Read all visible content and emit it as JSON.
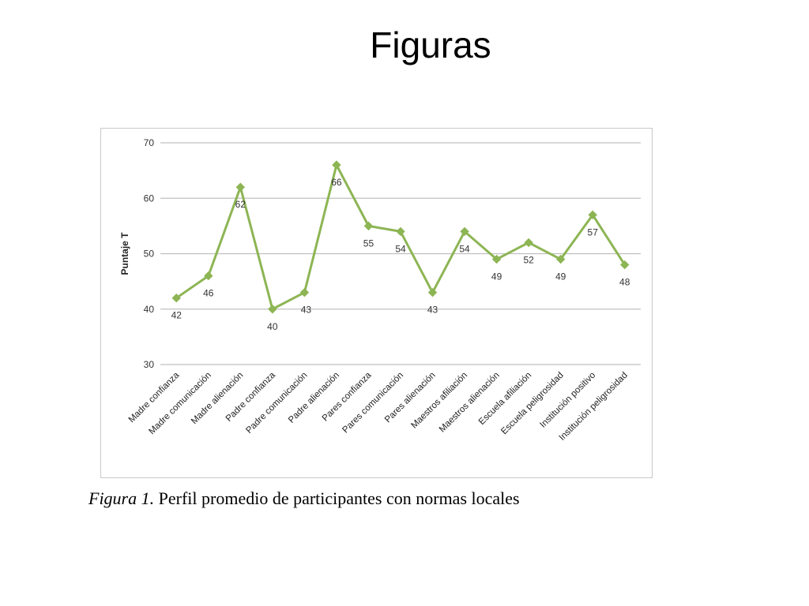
{
  "slide": {
    "title": "Figuras"
  },
  "caption": {
    "label": "Figura 1.",
    "text": " Perfil promedio de participantes con normas locales"
  },
  "colors": {
    "series": "#8db554",
    "grid": "#c0c0c0",
    "text": "#333333"
  },
  "chart_data": {
    "type": "line",
    "ylabel": "Puntaje T",
    "ylim": [
      30,
      70
    ],
    "yticks": [
      30,
      40,
      50,
      60,
      70
    ],
    "grid": true,
    "categories": [
      "Madre confianza",
      "Madre comunicación",
      "Madre alienación",
      "Padre confianza",
      "Padre comunicación",
      "Padre alienación",
      "Pares confianza",
      "Pares comunicación",
      "Pares alienación",
      "Maestros afiliación",
      "Maestros alienación",
      "Escuela afiliación",
      "Escuela peligrosidad",
      "Institución positivo",
      "Institución peligrosidad"
    ],
    "series": [
      {
        "values": [
          42,
          46,
          62,
          40,
          43,
          66,
          55,
          54,
          43,
          54,
          49,
          52,
          49,
          57,
          48
        ],
        "labels": [
          "42",
          "46",
          "62",
          "40",
          "43",
          "66",
          "55",
          "54",
          "43",
          "54",
          "49",
          "52",
          "49",
          "57",
          "48"
        ],
        "label_positions": [
          "below",
          "below",
          "below",
          "below",
          "right",
          "below",
          "below",
          "below",
          "below",
          "below",
          "below",
          "below",
          "below",
          "below",
          "below"
        ]
      }
    ]
  }
}
